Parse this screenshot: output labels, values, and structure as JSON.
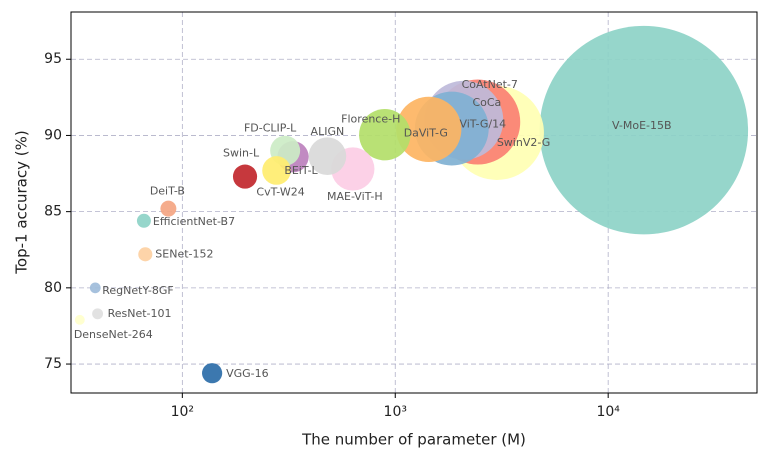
{
  "chart_data": {
    "type": "scatter",
    "x_label": "The number of parameter (M)",
    "y_label": "Top-1 accuracy (%)",
    "x_log": true,
    "grid": true,
    "xlim": [
      30,
      50000
    ],
    "ylim": [
      73.1,
      98.1
    ],
    "xticks": [
      {
        "value": 100,
        "label": "10²"
      },
      {
        "value": 1000,
        "label": "10³"
      },
      {
        "value": 10000,
        "label": "10⁴"
      }
    ],
    "yticks": [
      75,
      80,
      85,
      90,
      95
    ],
    "point_labels": [
      "V-MoE-15B",
      "SwinV2-G",
      "CoAtNet-7",
      "CoCa",
      "ViT-G/14",
      "DaViT-G",
      "Florence-H",
      "MAE-ViT-H",
      "ALIGN",
      "BEiT-L",
      "FD-CLIP-L",
      "CvT-W24",
      "Swin-L",
      "VGG-16",
      "DeiT-B",
      "SENet-152",
      "EfficientNet-B7",
      "ResNet-101",
      "RegNetY-8GF",
      "DenseNet-264"
    ],
    "x": [
      14700,
      3000,
      2440,
      2100,
      1843,
      1437,
      893,
      632,
      480,
      331,
      304,
      277,
      197,
      138,
      86,
      67,
      66,
      40,
      39,
      33
    ],
    "values": [
      90.35,
      90.17,
      90.88,
      91.0,
      90.45,
      90.4,
      90.05,
      87.8,
      88.64,
      88.6,
      89.0,
      87.7,
      87.3,
      74.4,
      85.2,
      82.2,
      84.4,
      78.3,
      80.0,
      77.9
    ],
    "colors": [
      "#8dd3c7",
      "#ffffb3",
      "#fb8072",
      "#bebada",
      "#80b1d3",
      "#fdb462",
      "#b3de69",
      "#fccde5",
      "#d9d9d9",
      "#bc80bd",
      "#ccebc5",
      "#ffed6f",
      "#c1272d",
      "#2b6ca8",
      "#f4a582",
      "#fdd0a2",
      "#8dd3c7",
      "#e0e0e0",
      "#9ebcda",
      "#ffffcc"
    ]
  }
}
